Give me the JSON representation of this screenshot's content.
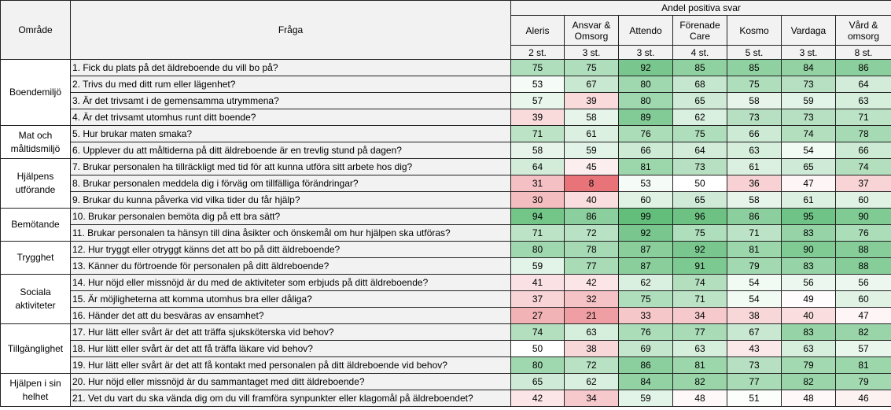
{
  "header": {
    "area_label": "Område",
    "question_label": "Fråga",
    "group_label": "Andel positiva svar",
    "providers": [
      {
        "name": "Aleris",
        "count": "2 st."
      },
      {
        "name": "Ansvar & Omsorg",
        "count": "3 st."
      },
      {
        "name": "Attendo",
        "count": "3 st."
      },
      {
        "name": "Förenade Care",
        "count": "4 st."
      },
      {
        "name": "Kosmo",
        "count": "5 st."
      },
      {
        "name": "Vardaga",
        "count": "3 st."
      },
      {
        "name": "Vård & omsorg",
        "count": "8 st."
      }
    ]
  },
  "sections": [
    {
      "area": "Boendemiljö",
      "rows": [
        {
          "q": "1. Fick du plats på det äldreboende du vill bo på?",
          "v": [
            75,
            75,
            92,
            85,
            85,
            84,
            86
          ]
        },
        {
          "q": "2. Trivs du med ditt rum eller lägenhet?",
          "v": [
            53,
            67,
            80,
            68,
            75,
            73,
            64
          ]
        },
        {
          "q": "3. Är det trivsamt i de gemensamma utrymmena?",
          "v": [
            57,
            39,
            80,
            65,
            58,
            59,
            63
          ]
        },
        {
          "q": "4. Är det trivsamt utomhus runt ditt boende?",
          "v": [
            39,
            58,
            89,
            62,
            73,
            73,
            71
          ]
        }
      ]
    },
    {
      "area": "Mat och måltidsmiljö",
      "rows": [
        {
          "q": "5. Hur brukar maten smaka?",
          "v": [
            71,
            61,
            76,
            75,
            66,
            74,
            78
          ]
        },
        {
          "q": "6. Upplever du att måltiderna på ditt äldreboende är en trevlig stund på dagen?",
          "v": [
            58,
            59,
            66,
            64,
            63,
            54,
            66
          ]
        }
      ]
    },
    {
      "area": "Hjälpens utförande",
      "rows": [
        {
          "q": "7. Brukar personalen ha tillräckligt med tid för att kunna utföra sitt arbete hos dig?",
          "v": [
            64,
            45,
            81,
            73,
            61,
            65,
            74
          ]
        },
        {
          "q": "8. Brukar personalen meddela dig i förväg om tillfälliga förändringar?",
          "v": [
            31,
            8,
            53,
            50,
            36,
            47,
            37
          ]
        },
        {
          "q": "9. Brukar du kunna påverka vid vilka tider du får hjälp?",
          "v": [
            30,
            40,
            60,
            65,
            58,
            61,
            60
          ]
        }
      ]
    },
    {
      "area": "Bemötande",
      "rows": [
        {
          "q": "10. Brukar personalen bemöta dig på ett bra sätt?",
          "v": [
            94,
            86,
            99,
            96,
            86,
            95,
            90
          ]
        },
        {
          "q": "11. Brukar personalen ta hänsyn till dina åsikter och önskemål om hur hjälpen ska utföras?",
          "v": [
            71,
            72,
            92,
            75,
            71,
            83,
            76
          ]
        }
      ]
    },
    {
      "area": "Trygghet",
      "rows": [
        {
          "q": "12. Hur tryggt eller otryggt känns det att bo på ditt äldreboende?",
          "v": [
            80,
            78,
            87,
            92,
            81,
            90,
            88
          ]
        },
        {
          "q": "13. Känner du förtroende för personalen på ditt äldreboende?",
          "v": [
            59,
            77,
            87,
            91,
            79,
            83,
            88
          ]
        }
      ]
    },
    {
      "area": "Sociala aktiviteter",
      "rows": [
        {
          "q": "14. Hur nöjd eller missnöjd är du med de aktiviteter som erbjuds på ditt äldreboende?",
          "v": [
            41,
            42,
            62,
            74,
            54,
            56,
            56
          ]
        },
        {
          "q": "15. Är möjligheterna att komma utomhus bra eller dåliga?",
          "v": [
            37,
            32,
            75,
            71,
            54,
            49,
            60
          ]
        },
        {
          "q": "16. Händer det att du besväras av ensamhet?",
          "v": [
            27,
            21,
            33,
            34,
            38,
            40,
            47
          ]
        }
      ]
    },
    {
      "area": "Tillgänglighet",
      "rows": [
        {
          "q": "17. Hur lätt eller svårt är det att träffa sjuksköterska vid behov?",
          "v": [
            74,
            63,
            76,
            77,
            67,
            83,
            82
          ]
        },
        {
          "q": "18. Hur lätt eller svårt är det att få träffa läkare vid behov?",
          "v": [
            50,
            38,
            69,
            63,
            43,
            63,
            57
          ]
        },
        {
          "q": "19. Hur lätt eller svårt är det att få kontakt med personalen på ditt äldreboende vid behov?",
          "v": [
            80,
            72,
            86,
            81,
            73,
            79,
            81
          ]
        }
      ]
    },
    {
      "area": "Hjälpen i sin helhet",
      "rows": [
        {
          "q": "20. Hur nöjd eller missnöjd är du sammantaget med ditt äldreboende?",
          "v": [
            65,
            62,
            84,
            82,
            77,
            82,
            79
          ]
        },
        {
          "q": "21. Vet du vart du ska vända dig om du vill framföra synpunkter eller klagomål på äldreboendet?",
          "v": [
            42,
            34,
            59,
            48,
            51,
            48,
            46
          ]
        }
      ]
    }
  ],
  "colors": {
    "low": "#e8747a",
    "mid": "#ffffff",
    "high": "#63be7b",
    "header_bg": "#f2f2f2"
  }
}
